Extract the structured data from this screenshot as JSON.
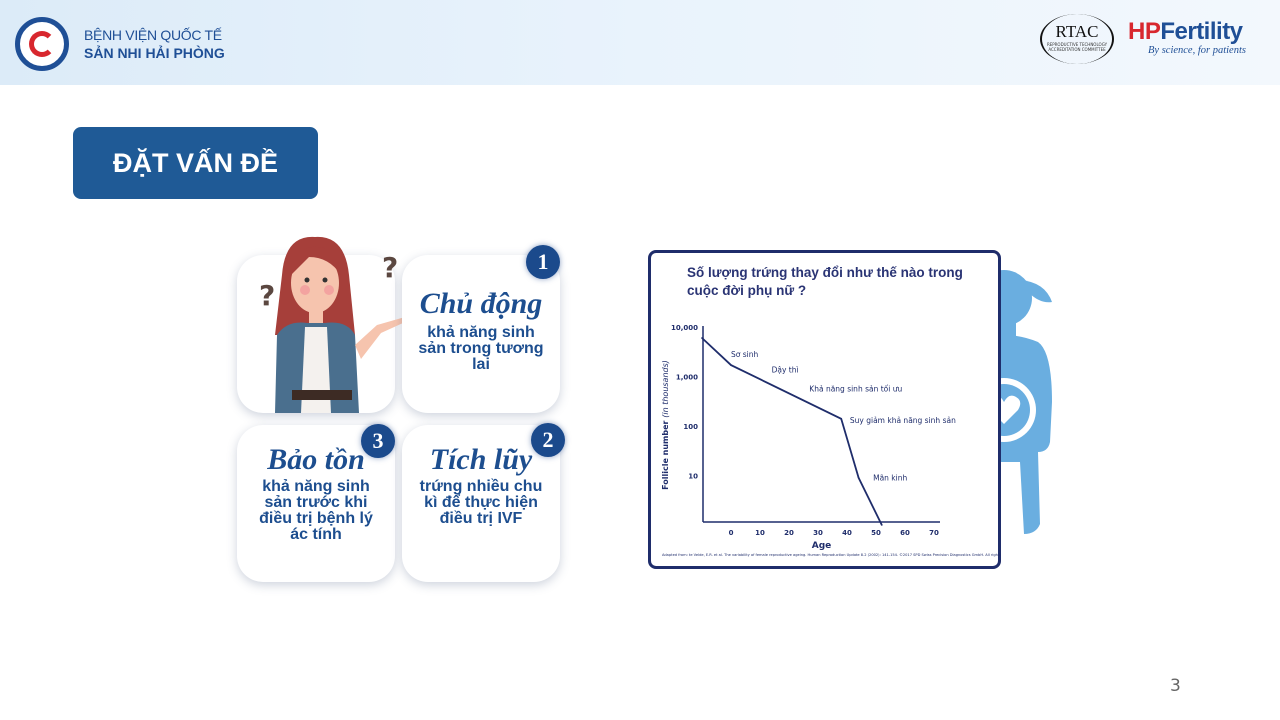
{
  "header": {
    "hospital_line1": "BỆNH VIỆN QUỐC TẾ",
    "hospital_line2": "SẢN NHI HẢI PHÒNG",
    "rtac_logo": "RTAC",
    "rtac_sub": "REPRODUCTIVE TECHNOLOGY ACCREDITATION COMMITTEE",
    "hp_logo_hp": "HP",
    "hp_logo_fertility": "Fertility",
    "hp_tagline": "By science, for patients"
  },
  "section_title": "ĐẶT VẤN ĐỀ",
  "cards": [
    {
      "number": "1",
      "heading": "Chủ động",
      "body": "khả năng sinh sản trong tương lai"
    },
    {
      "number": "2",
      "heading": "Tích lũy",
      "body": "trứng nhiều chu kì để thực hiện điều trị IVF"
    },
    {
      "number": "3",
      "heading": "Bảo tồn",
      "body": "khả năng sinh sản trước khi điều trị bệnh lý ác tính"
    }
  ],
  "illustration": {
    "question_mark": "?"
  },
  "colors": {
    "navy": "#1f2d6b",
    "title_badge": "#1f5a96",
    "silhouette": "#6aaee0",
    "hp_red": "#d8272e"
  },
  "chart_data": {
    "type": "line",
    "title": "Số lượng trứng thay đổi như thế nào trong cuộc đời phụ nữ ?",
    "xlabel": "Age",
    "ylabel": "Follicle number",
    "ylabel_unit": "(in thousands)",
    "y_scale": "log",
    "xlim": [
      -10,
      70
    ],
    "ylim": [
      1,
      10000
    ],
    "x_ticks": [
      "0",
      "10",
      "20",
      "30",
      "40",
      "50",
      "60",
      "70"
    ],
    "y_ticks": [
      "10,000",
      "1,000",
      "100",
      "10"
    ],
    "grid": false,
    "series": [
      {
        "x": [
          -10,
          0,
          38,
          44,
          52
        ],
        "y": [
          6000,
          1700,
          140,
          9,
          1
        ]
      }
    ],
    "annotations": [
      {
        "text": "Sơ sinh",
        "x": 0,
        "y": 2500
      },
      {
        "text": "Dậy thì",
        "x": 14,
        "y": 1200
      },
      {
        "text": "Khả năng sinh sản tối ưu",
        "x": 27,
        "y": 500
      },
      {
        "text": "Suy giảm khả năng sinh sản",
        "x": 41,
        "y": 115
      },
      {
        "text": "Mãn kinh",
        "x": 49,
        "y": 8
      }
    ],
    "source": "Adapted from: te Velde, E.R. et al. The variability of female reproductive ageing. Human Reproduction Update 8.2 (2002): 141-154. ©2017 SPD Swiss Precision Diagnostics GmbH. All rights reserved."
  },
  "page_number": "3"
}
